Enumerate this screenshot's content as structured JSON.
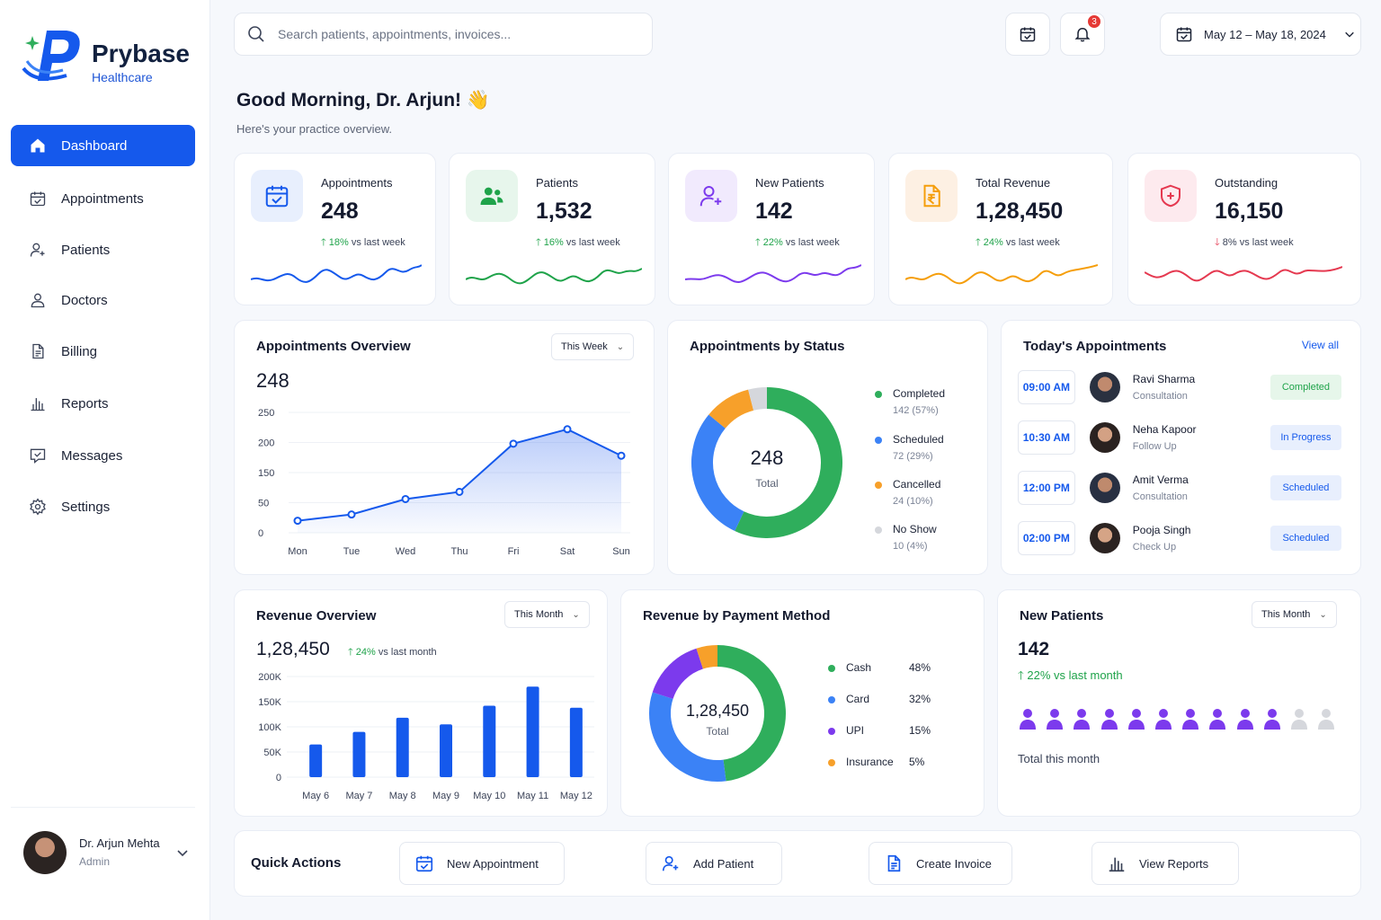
{
  "brand": {
    "name": "Prybase",
    "sub": "Healthcare"
  },
  "sidebar": {
    "items": [
      {
        "label": "Dashboard",
        "icon": "home-icon"
      },
      {
        "label": "Appointments",
        "icon": "calendar-icon"
      },
      {
        "label": "Patients",
        "icon": "user-plus-icon"
      },
      {
        "label": "Doctors",
        "icon": "user-icon"
      },
      {
        "label": "Billing",
        "icon": "document-icon"
      },
      {
        "label": "Reports",
        "icon": "bar-chart-icon"
      },
      {
        "label": "Messages",
        "icon": "message-icon"
      },
      {
        "label": "Settings",
        "icon": "gear-icon"
      }
    ],
    "active": "Dashboard",
    "user": {
      "name": "Dr. Arjun Mehta",
      "role": "Admin"
    }
  },
  "header": {
    "search_placeholder": "Search patients, appointments, invoices...",
    "notifications": "3",
    "date_range": "May 12 – May 18, 2024"
  },
  "greeting": {
    "title": "Good Morning, Dr. Arjun! 👋",
    "subtitle": "Here's your practice overview."
  },
  "stats": [
    {
      "label": "Appointments",
      "value": "248",
      "change": "18%",
      "change_suffix": "vs last week",
      "direction": "up",
      "color": "#1559ec",
      "icon": "calendar-check-icon"
    },
    {
      "label": "Patients",
      "value": "1,532",
      "change": "16%",
      "change_suffix": "vs last week",
      "direction": "up",
      "color": "#1fa34a",
      "icon": "users-icon"
    },
    {
      "label": "New Patients",
      "value": "142",
      "change": "22%",
      "change_suffix": "vs last week",
      "direction": "up",
      "color": "#7c3aed",
      "icon": "user-plus-icon"
    },
    {
      "label": "Total Revenue",
      "value": "1,28,450",
      "change": "24%",
      "change_suffix": "vs last week",
      "direction": "up",
      "color": "#f59e0b",
      "icon": "rupee-document-icon"
    },
    {
      "label": "Outstanding",
      "value": "16,150",
      "change": "8%",
      "change_suffix": "vs last week",
      "direction": "down",
      "color": "#e53950",
      "icon": "shield-plus-icon"
    }
  ],
  "appointments_overview": {
    "title": "Appointments Overview",
    "period": "This Week",
    "total": "248"
  },
  "appointments_by_status": {
    "title": "Appointments by Status",
    "total": "248",
    "total_label": "Total",
    "items": [
      {
        "name": "Completed",
        "detail": "142 (57%)",
        "color": "#2fae5c"
      },
      {
        "name": "Scheduled",
        "detail": "72 (29%)",
        "color": "#3b82f6"
      },
      {
        "name": "Cancelled",
        "detail": "24 (10%)",
        "color": "#f7a02a"
      },
      {
        "name": "No Show",
        "detail": "10 (4%)",
        "color": "#d5d7dc"
      }
    ]
  },
  "todays_appointments": {
    "title": "Today's Appointments",
    "view_all": "View all",
    "rows": [
      {
        "time": "09:00 AM",
        "name": "Ravi Sharma",
        "type": "Consultation",
        "status": "Completed",
        "status_type": "completed"
      },
      {
        "time": "10:30 AM",
        "name": "Neha Kapoor",
        "type": "Follow Up",
        "status": "In Progress",
        "status_type": "progress"
      },
      {
        "time": "12:00 PM",
        "name": "Amit Verma",
        "type": "Consultation",
        "status": "Scheduled",
        "status_type": "scheduled"
      },
      {
        "time": "02:00 PM",
        "name": "Pooja Singh",
        "type": "Check Up",
        "status": "Scheduled",
        "status_type": "scheduled"
      }
    ]
  },
  "revenue_overview": {
    "title": "Revenue Overview",
    "period": "This Month",
    "total": "1,28,450",
    "change": "24%",
    "change_suffix": "vs last month"
  },
  "revenue_by_payment": {
    "title": "Revenue by Payment Method",
    "total": "1,28,450",
    "total_label": "Total",
    "items": [
      {
        "name": "Cash",
        "pct": "48%",
        "color": "#2fae5c"
      },
      {
        "name": "Card",
        "pct": "32%",
        "color": "#3b82f6"
      },
      {
        "name": "UPI",
        "pct": "15%",
        "color": "#7c3aed"
      },
      {
        "name": "Insurance",
        "pct": "5%",
        "color": "#f7a02a"
      }
    ]
  },
  "new_patients": {
    "title": "New Patients",
    "period": "This Month",
    "value": "142",
    "change": "22%",
    "change_suffix": "vs last month",
    "footer": "Total this month",
    "filled_icons": 10,
    "total_icons": 12
  },
  "quick_actions": {
    "title": "Quick Actions",
    "buttons": [
      {
        "label": "New Appointment",
        "icon": "calendar-icon"
      },
      {
        "label": "Add Patient",
        "icon": "user-plus-icon"
      },
      {
        "label": "Create Invoice",
        "icon": "document-icon"
      },
      {
        "label": "View Reports",
        "icon": "bar-chart-icon"
      }
    ]
  },
  "chart_data": [
    {
      "type": "line",
      "categories": [
        "Mon",
        "Tue",
        "Wed",
        "Thu",
        "Fri",
        "Sat",
        "Sun"
      ],
      "values": [
        25,
        38,
        70,
        85,
        185,
        215,
        160
      ],
      "yticks": [
        "250",
        "200",
        "150",
        "50",
        "0"
      ],
      "ylim": [
        0,
        250
      ],
      "grid": true
    },
    {
      "type": "pie",
      "categories": [
        "Completed",
        "Scheduled",
        "Cancelled",
        "No Show"
      ],
      "values": [
        57,
        29,
        10,
        4
      ]
    },
    {
      "type": "bar",
      "categories": [
        "May 6",
        "May 7",
        "May 8",
        "May 9",
        "May 10",
        "May 11",
        "May 12"
      ],
      "values": [
        65000,
        90000,
        118000,
        105000,
        142000,
        180000,
        138000
      ],
      "yticks": [
        "200K",
        "150K",
        "100K",
        "50K",
        "0"
      ],
      "ylim": [
        0,
        200000
      ],
      "grid": true
    },
    {
      "type": "pie",
      "categories": [
        "Cash",
        "Card",
        "UPI",
        "Insurance"
      ],
      "values": [
        48,
        32,
        15,
        5
      ]
    }
  ]
}
